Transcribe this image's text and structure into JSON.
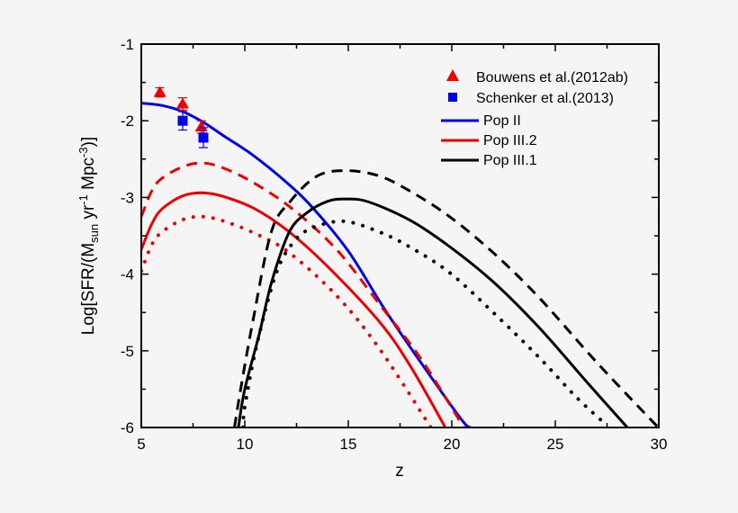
{
  "chart_data": {
    "type": "line",
    "xlabel": "z",
    "ylabel": {
      "main": "Log[SFR/(M",
      "sub": "sun",
      "mid1": " yr",
      "sup1": "-1",
      "mid2": " Mpc",
      "sup2": "-3",
      "end": ")]"
    },
    "xlim": [
      5,
      30
    ],
    "ylim": [
      -6,
      -1
    ],
    "xticks": [
      5,
      10,
      15,
      20,
      25,
      30
    ],
    "yticks": [
      -1,
      -2,
      -3,
      -4,
      -5,
      -6
    ],
    "grid": false,
    "legend_position": "top-right",
    "colors": {
      "pop2": "#0000ee",
      "pop3_2": "#ee0000",
      "pop3_1": "#000000",
      "bouwens": "#ee0000",
      "schenker": "#0000ee"
    },
    "scatter": [
      {
        "name": "Bouwens et al.(2012ab)",
        "marker": "triangle",
        "color": "#ee0000",
        "points": [
          {
            "x": 5.9,
            "y": -1.63,
            "err": 0.06
          },
          {
            "x": 7.0,
            "y": -1.78,
            "err": 0.08
          },
          {
            "x": 7.9,
            "y": -2.08,
            "err": 0.08
          }
        ]
      },
      {
        "name": "Schenker et al.(2013)",
        "marker": "square",
        "color": "#0000ee",
        "points": [
          {
            "x": 7.0,
            "y": -2.0,
            "err": 0.12
          },
          {
            "x": 8.0,
            "y": -2.22,
            "err": 0.13
          }
        ]
      }
    ],
    "series": [
      {
        "name": "Pop II",
        "color": "#0000ee",
        "style": "solid",
        "points": [
          [
            5,
            -1.77
          ],
          [
            6,
            -1.8
          ],
          [
            7,
            -1.88
          ],
          [
            8,
            -2.02
          ],
          [
            9,
            -2.2
          ],
          [
            10.4,
            -2.45
          ],
          [
            12,
            -2.8
          ],
          [
            13.3,
            -3.14
          ],
          [
            15,
            -3.7
          ],
          [
            16.76,
            -4.46
          ],
          [
            18.5,
            -5.15
          ],
          [
            20.45,
            -5.89
          ],
          [
            20.9,
            -6.0
          ]
        ]
      },
      {
        "name": "Pop III.2",
        "color": "#ee0000",
        "style": "solid",
        "points": [
          [
            5,
            -3.68
          ],
          [
            5.5,
            -3.35
          ],
          [
            6,
            -3.15
          ],
          [
            7,
            -2.98
          ],
          [
            7.95,
            -2.94
          ],
          [
            9,
            -2.99
          ],
          [
            10.5,
            -3.15
          ],
          [
            12.15,
            -3.45
          ],
          [
            14,
            -3.9
          ],
          [
            16.5,
            -4.62
          ],
          [
            18,
            -5.2
          ],
          [
            19.67,
            -5.99
          ]
        ]
      },
      {
        "color": "#ee0000",
        "style": "dashed",
        "points": [
          [
            5,
            -3.25
          ],
          [
            5.5,
            -2.92
          ],
          [
            6,
            -2.75
          ],
          [
            7,
            -2.6
          ],
          [
            7.95,
            -2.55
          ],
          [
            9,
            -2.62
          ],
          [
            10.5,
            -2.82
          ],
          [
            12.4,
            -3.17
          ],
          [
            14.5,
            -3.7
          ],
          [
            16.5,
            -4.39
          ],
          [
            18.5,
            -5.1
          ],
          [
            20.4,
            -5.92
          ],
          [
            20.6,
            -6.0
          ]
        ]
      },
      {
        "color": "#ee0000",
        "style": "dotted",
        "points": [
          [
            5,
            -3.96
          ],
          [
            5.5,
            -3.62
          ],
          [
            6,
            -3.45
          ],
          [
            7,
            -3.29
          ],
          [
            7.95,
            -3.25
          ],
          [
            9,
            -3.31
          ],
          [
            10.5,
            -3.47
          ],
          [
            12.15,
            -3.72
          ],
          [
            14.5,
            -4.3
          ],
          [
            16.5,
            -4.97
          ],
          [
            18.8,
            -5.92
          ],
          [
            19.0,
            -6.0
          ]
        ]
      },
      {
        "name": "Pop III.1",
        "color": "#000000",
        "style": "solid",
        "points": [
          [
            9.69,
            -6.0
          ],
          [
            10.0,
            -5.5
          ],
          [
            10.7,
            -4.78
          ],
          [
            11.3,
            -4.1
          ],
          [
            12.15,
            -3.45
          ],
          [
            13,
            -3.2
          ],
          [
            14,
            -3.05
          ],
          [
            14.9,
            -3.02
          ],
          [
            16,
            -3.06
          ],
          [
            18,
            -3.3
          ],
          [
            19.89,
            -3.64
          ],
          [
            22,
            -4.1
          ],
          [
            24.23,
            -4.7
          ],
          [
            26.5,
            -5.4
          ],
          [
            28.48,
            -6.0
          ]
        ]
      },
      {
        "color": "#000000",
        "style": "dashed",
        "points": [
          [
            9.5,
            -6.0
          ],
          [
            9.8,
            -5.5
          ],
          [
            10.4,
            -4.6
          ],
          [
            11.28,
            -3.45
          ],
          [
            12.2,
            -3.05
          ],
          [
            13.5,
            -2.72
          ],
          [
            14.9,
            -2.65
          ],
          [
            16.5,
            -2.72
          ],
          [
            18,
            -2.92
          ],
          [
            19.89,
            -3.25
          ],
          [
            22,
            -3.72
          ],
          [
            24.23,
            -4.31
          ],
          [
            27,
            -5.15
          ],
          [
            29.87,
            -5.97
          ],
          [
            30,
            -6.0
          ]
        ]
      },
      {
        "color": "#000000",
        "style": "dotted",
        "points": [
          [
            9.9,
            -6.0
          ],
          [
            10.03,
            -5.68
          ],
          [
            10.6,
            -4.9
          ],
          [
            11.5,
            -4.0
          ],
          [
            12.3,
            -3.6
          ],
          [
            13.16,
            -3.41
          ],
          [
            14.75,
            -3.31
          ],
          [
            16.5,
            -3.45
          ],
          [
            18,
            -3.65
          ],
          [
            19.89,
            -3.98
          ],
          [
            22,
            -4.5
          ],
          [
            24.23,
            -5.09
          ],
          [
            26,
            -5.6
          ],
          [
            27.4,
            -5.95
          ]
        ]
      }
    ],
    "legend": [
      "Bouwens et al.(2012ab)",
      "Schenker et al.(2013)",
      "Pop II",
      "Pop III.2",
      "Pop III.1"
    ]
  }
}
